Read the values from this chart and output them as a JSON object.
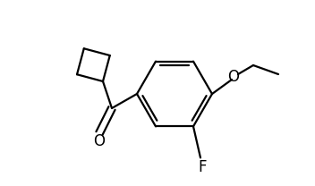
{
  "background_color": "#ffffff",
  "line_color": "#000000",
  "line_width": 1.6,
  "font_size": 12,
  "figsize": [
    3.52,
    2.08
  ],
  "dpi": 100,
  "xlim": [
    0,
    352
  ],
  "ylim": [
    0,
    208
  ]
}
